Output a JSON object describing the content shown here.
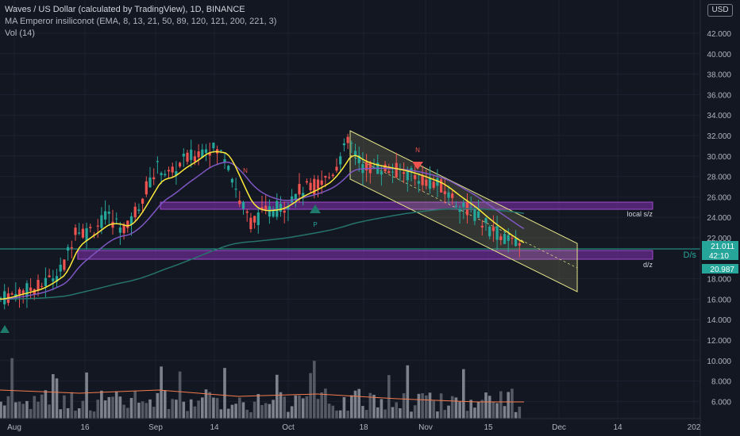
{
  "legend": {
    "title": "Waves / US Dollar (calculated by TradingView), 1D, BINANCE",
    "indicator": "MA Emperor insiliconot (EMA, 8, 13, 21, 50, 89, 120, 121, 200, 221, 3)",
    "volume": "Vol (14)"
  },
  "currency_button": "USD",
  "price_axis": {
    "ticks": [
      "42.000",
      "40.000",
      "38.000",
      "36.000",
      "34.000",
      "32.000",
      "30.000",
      "28.000",
      "26.000",
      "24.000",
      "22.000",
      "18.000",
      "16.000",
      "14.000",
      "12.000",
      "10.000",
      "8.000",
      "6.000"
    ],
    "last_price": "21.011",
    "countdown": "42:10",
    "ema_value": "20.987"
  },
  "time_axis": {
    "ticks": [
      "Aug",
      "16",
      "Sep",
      "14",
      "Oct",
      "18",
      "Nov",
      "15",
      "Dec",
      "14",
      "202"
    ]
  },
  "annotations": {
    "local_sz": "local s/z",
    "ds": "D/s",
    "dz": "d/z",
    "marker_p": "P",
    "marker_n": "N"
  },
  "colors": {
    "background": "#131722",
    "up_candle": "#26a69a",
    "down_candle": "#ef5350",
    "zone_purple": "#7b2fa8",
    "channel_yellow": "#e6e68a",
    "ema_fast": "#ffeb3b",
    "ema_mid": "#7e57c2",
    "ema_slow": "#26736b",
    "price_line": "#26a69a"
  }
}
